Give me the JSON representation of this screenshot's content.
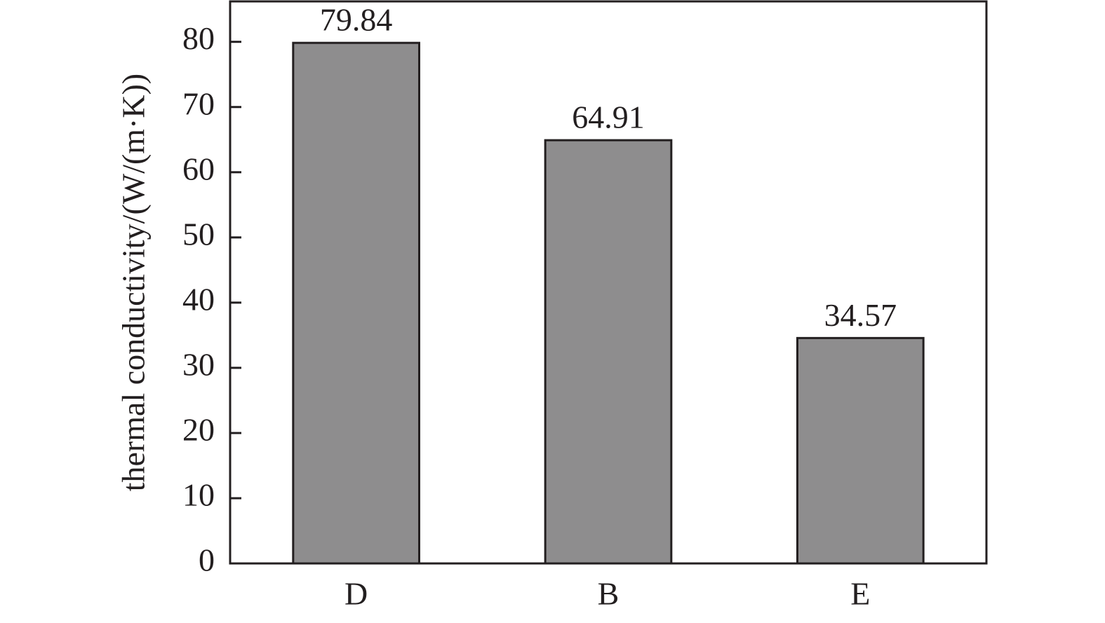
{
  "chart_data": {
    "type": "bar",
    "y_label": "thermal conductivity/(W/(m·K))",
    "categories": [
      "D",
      "B",
      "E"
    ],
    "values": [
      79.84,
      64.91,
      34.57
    ],
    "color": "#8e8d8e",
    "ylim": [
      0,
      86.2
    ],
    "yticks": [
      0,
      10,
      20,
      30,
      40,
      50,
      60,
      70,
      80
    ]
  }
}
